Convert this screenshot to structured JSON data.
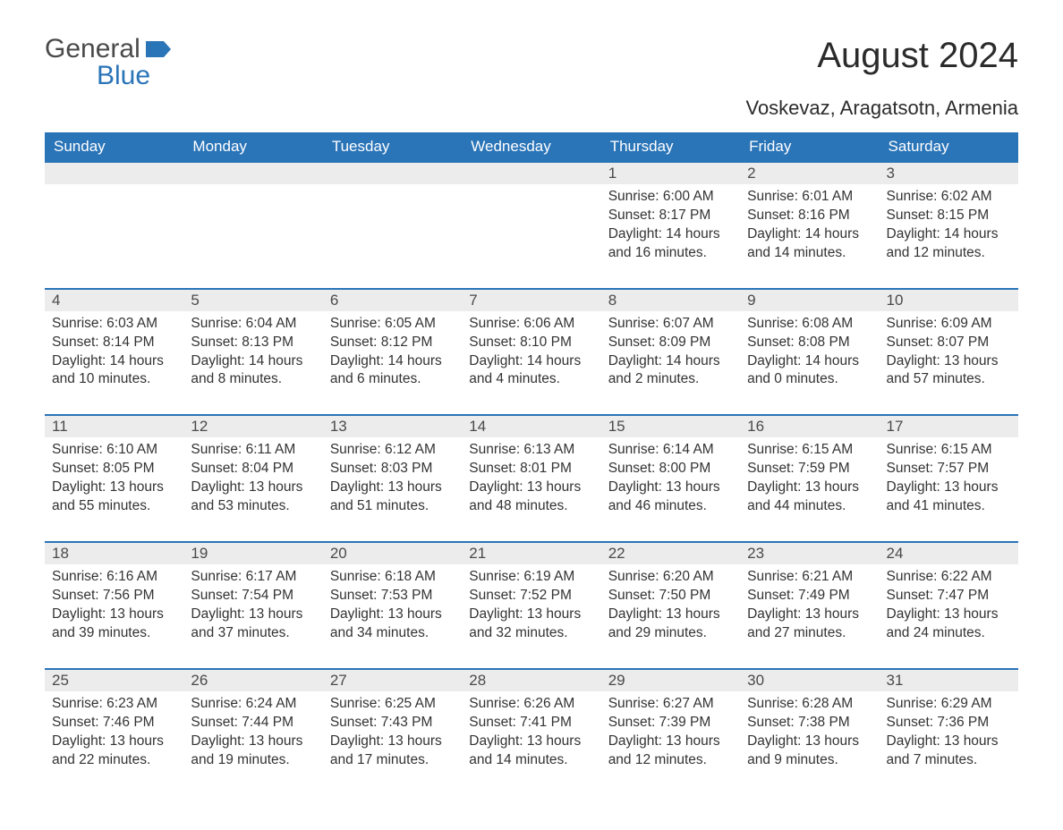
{
  "brand": {
    "text1": "General",
    "text2": "Blue"
  },
  "title": "August 2024",
  "location": "Voskevaz, Aragatsotn, Armenia",
  "colors": {
    "header_bg": "#2a74b8",
    "header_text": "#ffffff",
    "daynum_bg": "#ececec",
    "border": "#2a74b8",
    "body_text": "#333333",
    "brand_gray": "#4a4a4a",
    "brand_blue": "#2a74b8",
    "page_bg": "#ffffff"
  },
  "weekdays": [
    "Sunday",
    "Monday",
    "Tuesday",
    "Wednesday",
    "Thursday",
    "Friday",
    "Saturday"
  ],
  "weeks": [
    [
      null,
      null,
      null,
      null,
      {
        "day": "1",
        "sunrise": "Sunrise: 6:00 AM",
        "sunset": "Sunset: 8:17 PM",
        "daylight1": "Daylight: 14 hours",
        "daylight2": "and 16 minutes."
      },
      {
        "day": "2",
        "sunrise": "Sunrise: 6:01 AM",
        "sunset": "Sunset: 8:16 PM",
        "daylight1": "Daylight: 14 hours",
        "daylight2": "and 14 minutes."
      },
      {
        "day": "3",
        "sunrise": "Sunrise: 6:02 AM",
        "sunset": "Sunset: 8:15 PM",
        "daylight1": "Daylight: 14 hours",
        "daylight2": "and 12 minutes."
      }
    ],
    [
      {
        "day": "4",
        "sunrise": "Sunrise: 6:03 AM",
        "sunset": "Sunset: 8:14 PM",
        "daylight1": "Daylight: 14 hours",
        "daylight2": "and 10 minutes."
      },
      {
        "day": "5",
        "sunrise": "Sunrise: 6:04 AM",
        "sunset": "Sunset: 8:13 PM",
        "daylight1": "Daylight: 14 hours",
        "daylight2": "and 8 minutes."
      },
      {
        "day": "6",
        "sunrise": "Sunrise: 6:05 AM",
        "sunset": "Sunset: 8:12 PM",
        "daylight1": "Daylight: 14 hours",
        "daylight2": "and 6 minutes."
      },
      {
        "day": "7",
        "sunrise": "Sunrise: 6:06 AM",
        "sunset": "Sunset: 8:10 PM",
        "daylight1": "Daylight: 14 hours",
        "daylight2": "and 4 minutes."
      },
      {
        "day": "8",
        "sunrise": "Sunrise: 6:07 AM",
        "sunset": "Sunset: 8:09 PM",
        "daylight1": "Daylight: 14 hours",
        "daylight2": "and 2 minutes."
      },
      {
        "day": "9",
        "sunrise": "Sunrise: 6:08 AM",
        "sunset": "Sunset: 8:08 PM",
        "daylight1": "Daylight: 14 hours",
        "daylight2": "and 0 minutes."
      },
      {
        "day": "10",
        "sunrise": "Sunrise: 6:09 AM",
        "sunset": "Sunset: 8:07 PM",
        "daylight1": "Daylight: 13 hours",
        "daylight2": "and 57 minutes."
      }
    ],
    [
      {
        "day": "11",
        "sunrise": "Sunrise: 6:10 AM",
        "sunset": "Sunset: 8:05 PM",
        "daylight1": "Daylight: 13 hours",
        "daylight2": "and 55 minutes."
      },
      {
        "day": "12",
        "sunrise": "Sunrise: 6:11 AM",
        "sunset": "Sunset: 8:04 PM",
        "daylight1": "Daylight: 13 hours",
        "daylight2": "and 53 minutes."
      },
      {
        "day": "13",
        "sunrise": "Sunrise: 6:12 AM",
        "sunset": "Sunset: 8:03 PM",
        "daylight1": "Daylight: 13 hours",
        "daylight2": "and 51 minutes."
      },
      {
        "day": "14",
        "sunrise": "Sunrise: 6:13 AM",
        "sunset": "Sunset: 8:01 PM",
        "daylight1": "Daylight: 13 hours",
        "daylight2": "and 48 minutes."
      },
      {
        "day": "15",
        "sunrise": "Sunrise: 6:14 AM",
        "sunset": "Sunset: 8:00 PM",
        "daylight1": "Daylight: 13 hours",
        "daylight2": "and 46 minutes."
      },
      {
        "day": "16",
        "sunrise": "Sunrise: 6:15 AM",
        "sunset": "Sunset: 7:59 PM",
        "daylight1": "Daylight: 13 hours",
        "daylight2": "and 44 minutes."
      },
      {
        "day": "17",
        "sunrise": "Sunrise: 6:15 AM",
        "sunset": "Sunset: 7:57 PM",
        "daylight1": "Daylight: 13 hours",
        "daylight2": "and 41 minutes."
      }
    ],
    [
      {
        "day": "18",
        "sunrise": "Sunrise: 6:16 AM",
        "sunset": "Sunset: 7:56 PM",
        "daylight1": "Daylight: 13 hours",
        "daylight2": "and 39 minutes."
      },
      {
        "day": "19",
        "sunrise": "Sunrise: 6:17 AM",
        "sunset": "Sunset: 7:54 PM",
        "daylight1": "Daylight: 13 hours",
        "daylight2": "and 37 minutes."
      },
      {
        "day": "20",
        "sunrise": "Sunrise: 6:18 AM",
        "sunset": "Sunset: 7:53 PM",
        "daylight1": "Daylight: 13 hours",
        "daylight2": "and 34 minutes."
      },
      {
        "day": "21",
        "sunrise": "Sunrise: 6:19 AM",
        "sunset": "Sunset: 7:52 PM",
        "daylight1": "Daylight: 13 hours",
        "daylight2": "and 32 minutes."
      },
      {
        "day": "22",
        "sunrise": "Sunrise: 6:20 AM",
        "sunset": "Sunset: 7:50 PM",
        "daylight1": "Daylight: 13 hours",
        "daylight2": "and 29 minutes."
      },
      {
        "day": "23",
        "sunrise": "Sunrise: 6:21 AM",
        "sunset": "Sunset: 7:49 PM",
        "daylight1": "Daylight: 13 hours",
        "daylight2": "and 27 minutes."
      },
      {
        "day": "24",
        "sunrise": "Sunrise: 6:22 AM",
        "sunset": "Sunset: 7:47 PM",
        "daylight1": "Daylight: 13 hours",
        "daylight2": "and 24 minutes."
      }
    ],
    [
      {
        "day": "25",
        "sunrise": "Sunrise: 6:23 AM",
        "sunset": "Sunset: 7:46 PM",
        "daylight1": "Daylight: 13 hours",
        "daylight2": "and 22 minutes."
      },
      {
        "day": "26",
        "sunrise": "Sunrise: 6:24 AM",
        "sunset": "Sunset: 7:44 PM",
        "daylight1": "Daylight: 13 hours",
        "daylight2": "and 19 minutes."
      },
      {
        "day": "27",
        "sunrise": "Sunrise: 6:25 AM",
        "sunset": "Sunset: 7:43 PM",
        "daylight1": "Daylight: 13 hours",
        "daylight2": "and 17 minutes."
      },
      {
        "day": "28",
        "sunrise": "Sunrise: 6:26 AM",
        "sunset": "Sunset: 7:41 PM",
        "daylight1": "Daylight: 13 hours",
        "daylight2": "and 14 minutes."
      },
      {
        "day": "29",
        "sunrise": "Sunrise: 6:27 AM",
        "sunset": "Sunset: 7:39 PM",
        "daylight1": "Daylight: 13 hours",
        "daylight2": "and 12 minutes."
      },
      {
        "day": "30",
        "sunrise": "Sunrise: 6:28 AM",
        "sunset": "Sunset: 7:38 PM",
        "daylight1": "Daylight: 13 hours",
        "daylight2": "and 9 minutes."
      },
      {
        "day": "31",
        "sunrise": "Sunrise: 6:29 AM",
        "sunset": "Sunset: 7:36 PM",
        "daylight1": "Daylight: 13 hours",
        "daylight2": "and 7 minutes."
      }
    ]
  ]
}
